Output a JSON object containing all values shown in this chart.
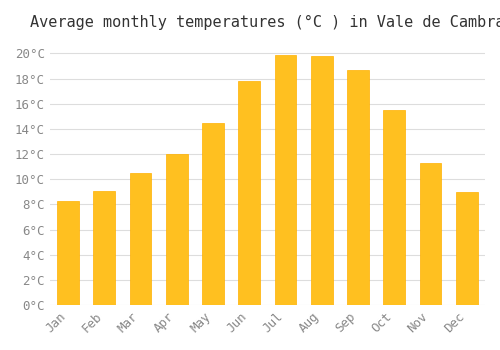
{
  "title": "Average monthly temperatures (°C ) in Vale de Cambra",
  "months": [
    "Jan",
    "Feb",
    "Mar",
    "Apr",
    "May",
    "Jun",
    "Jul",
    "Aug",
    "Sep",
    "Oct",
    "Nov",
    "Dec"
  ],
  "values": [
    8.3,
    9.1,
    10.5,
    12.0,
    14.5,
    17.8,
    19.9,
    19.8,
    18.7,
    15.5,
    11.3,
    9.0
  ],
  "bar_color": "#FFC020",
  "bar_edge_color": "#FFB000",
  "background_color": "#FFFFFF",
  "grid_color": "#DDDDDD",
  "text_color": "#888888",
  "ylim": [
    0,
    21
  ],
  "yticks": [
    0,
    2,
    4,
    6,
    8,
    10,
    12,
    14,
    16,
    18,
    20
  ],
  "title_fontsize": 11,
  "tick_fontsize": 9,
  "bar_width": 0.6
}
